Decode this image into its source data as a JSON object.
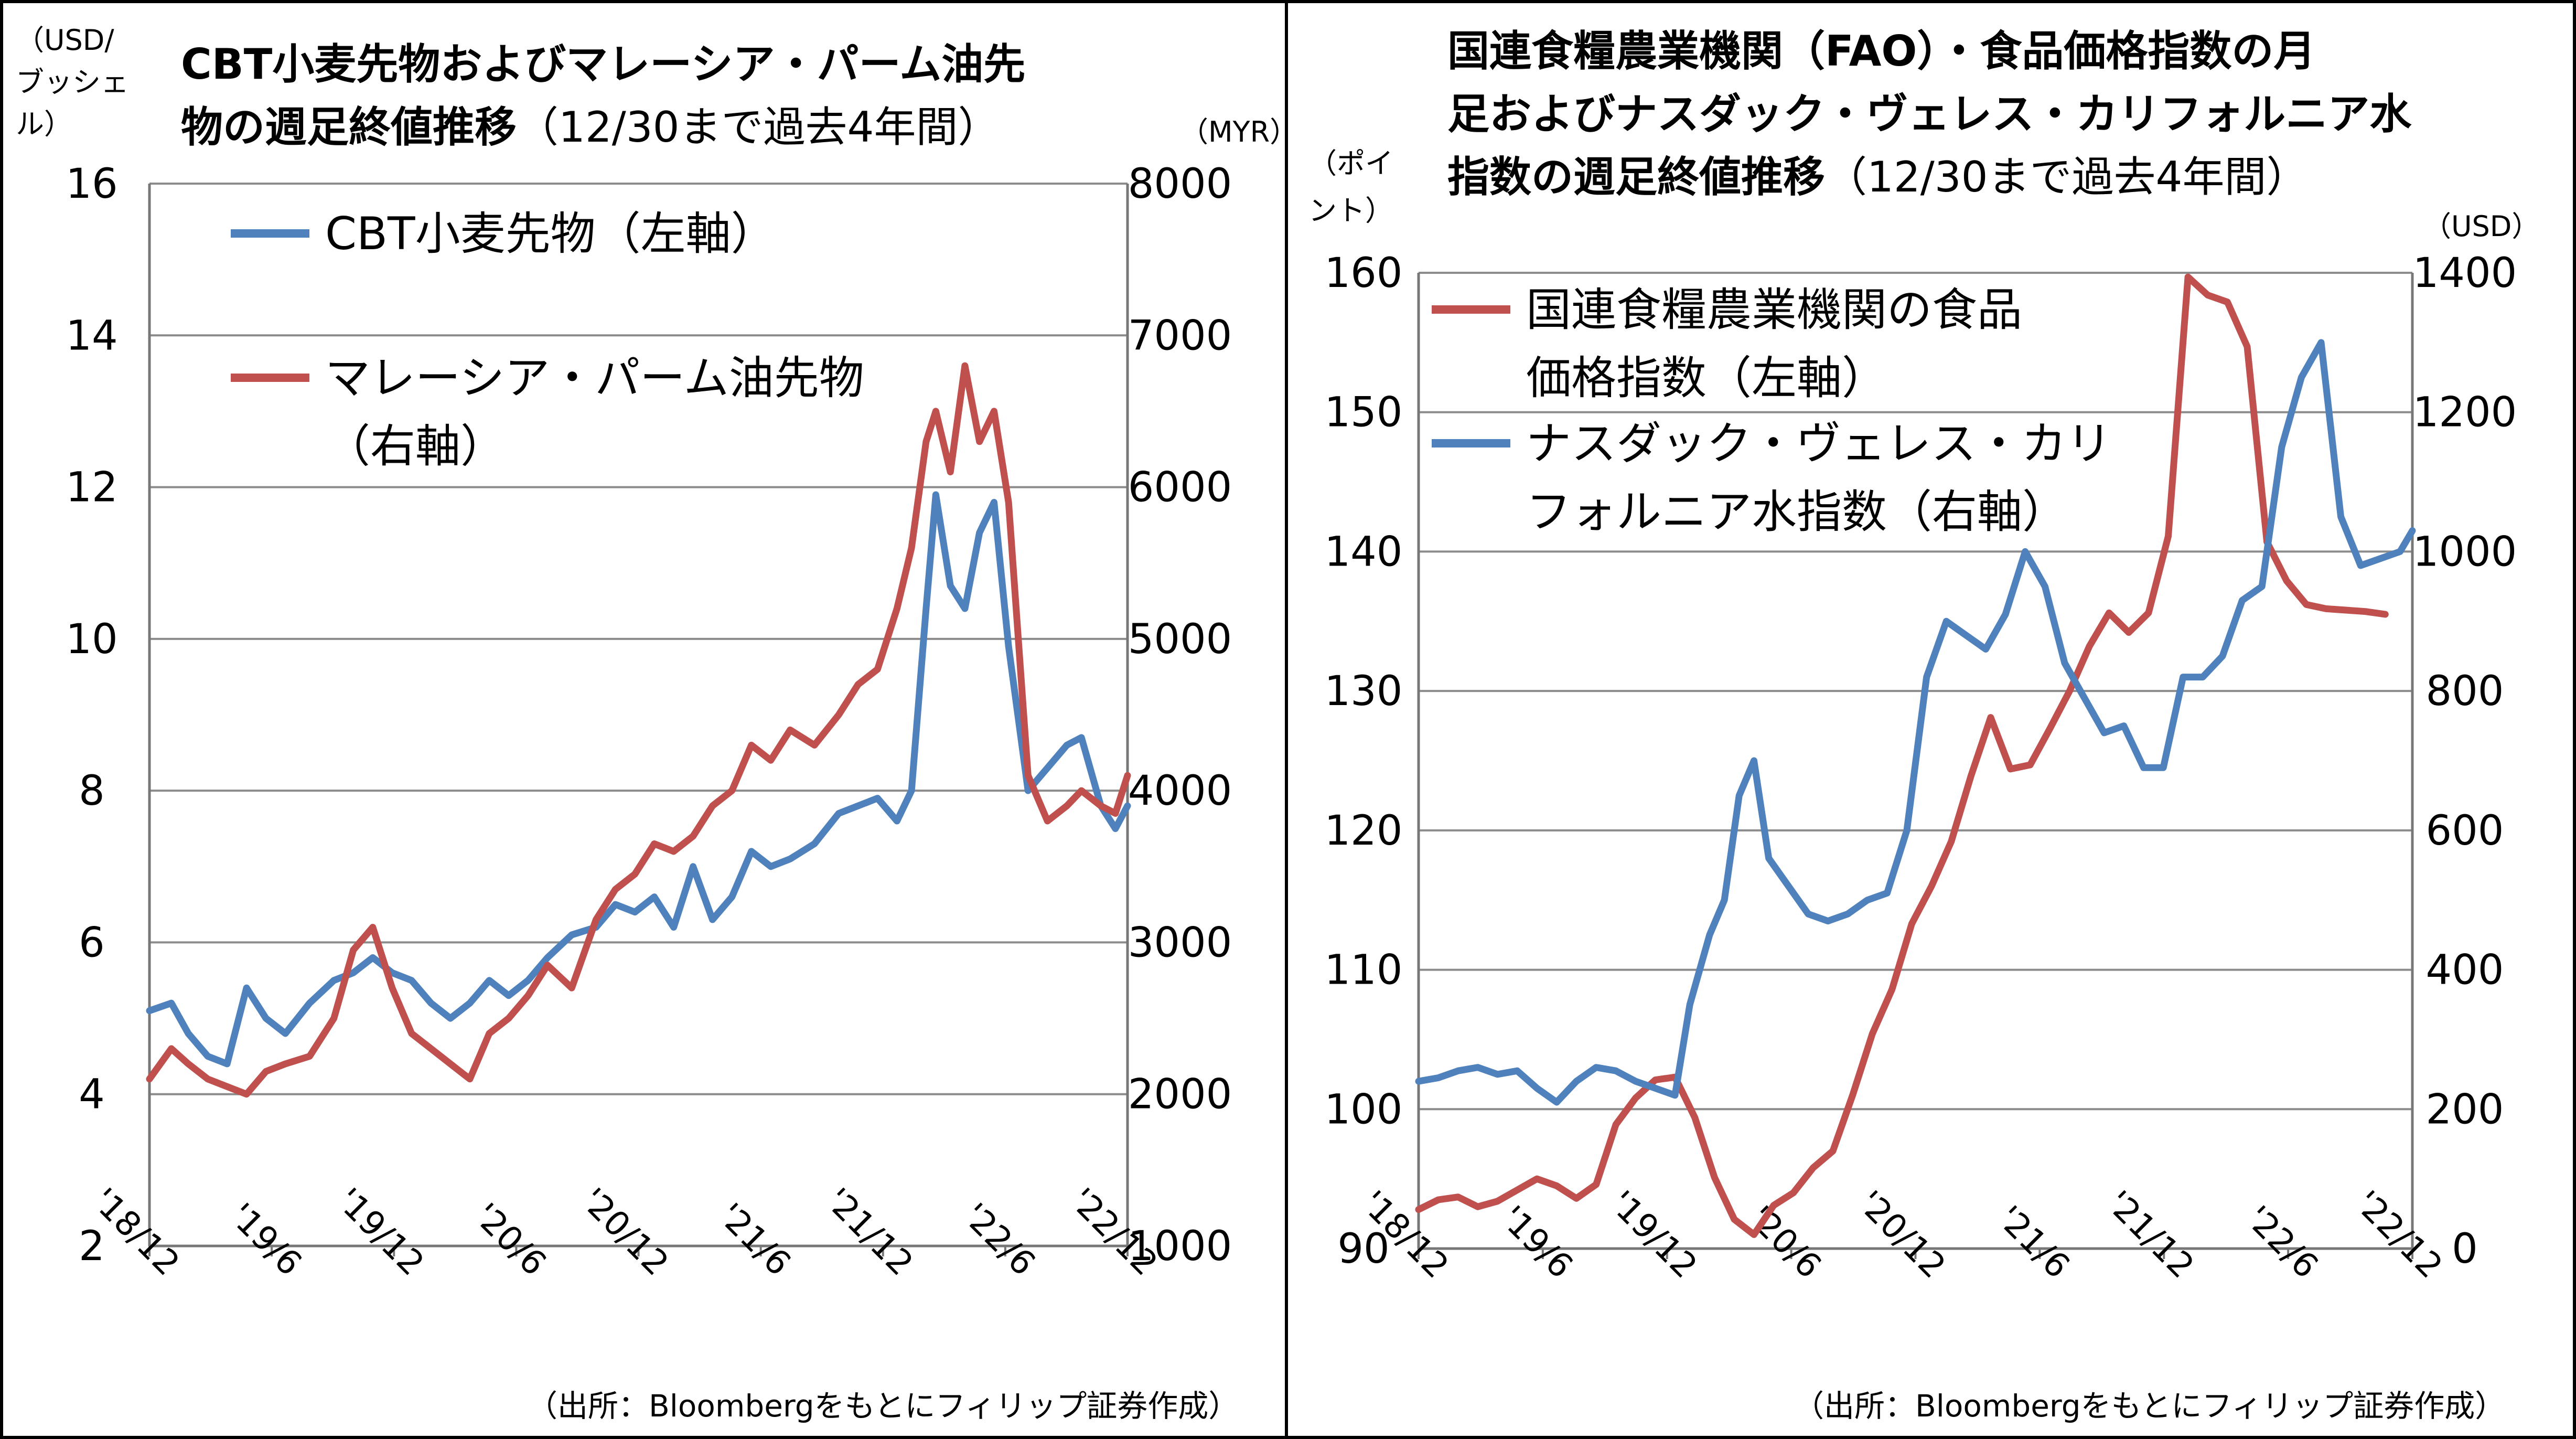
{
  "left_panel": {
    "title_bold_line1": "CBT小麦先物およびマレーシア・パーム油先",
    "title_bold_line2": "物の週足終値推移",
    "title_normal_line2": "（12/30まで過去4年間）",
    "right_unit": "（MYR）",
    "left_unit_line1": "（USD/",
    "left_unit_line2": "ブッシェ",
    "left_unit_line3": "ル）",
    "legend": [
      "CBT小麦先物（左軸）",
      "マレーシア・パーム油先物",
      "（右軸）"
    ],
    "source": "（出所：Bloombergをもとにフィリップ証券作成）"
  },
  "right_panel": {
    "title_line1": "国連食糧農業機関（FAO）・食品価格指数の月",
    "title_line2": "足およびナスダック・ヴェレス・カリフォルニア水",
    "title_bold_line3": "指数の週足終値推移",
    "title_normal_line3": "（12/30まで過去4年間）",
    "left_unit_line1": "（ポイ",
    "left_unit_line2": "ント）",
    "right_unit": "（USD）",
    "legend": [
      "国連食糧農業機関の食品",
      "価格指数（左軸）",
      "ナスダック・ヴェレス・カリ",
      "フォルニア水指数（右軸）"
    ],
    "source": "（出所：Bloombergをもとにフィリップ証券作成）"
  },
  "colors": {
    "blue": "#4F81BD",
    "red": "#C0504D",
    "grid": "#8C8C8C"
  },
  "chart_data": [
    {
      "type": "line",
      "x_labels": [
        "'18/12",
        "'19/6",
        "'19/12",
        "'20/6",
        "'20/12",
        "'21/6",
        "'21/12",
        "'22/6",
        "'22/12"
      ],
      "x_range": [
        2018.96,
        2022.99
      ],
      "y_left": {
        "ticks": [
          "2",
          "4",
          "6",
          "8",
          "10",
          "12",
          "14",
          "16"
        ],
        "range": [
          2,
          16
        ]
      },
      "y_right": {
        "ticks": [
          "1000",
          "2000",
          "3000",
          "4000",
          "5000",
          "6000",
          "7000",
          "8000"
        ],
        "range": [
          1000,
          8000
        ]
      },
      "grid": "horizontal",
      "series": [
        {
          "name": "CBT小麦先物（左軸）",
          "axis": "left",
          "color": "#4F81BD",
          "x": [
            2018.96,
            2019.05,
            2019.12,
            2019.2,
            2019.28,
            2019.36,
            2019.44,
            2019.52,
            2019.62,
            2019.72,
            2019.8,
            2019.88,
            2019.96,
            2020.04,
            2020.12,
            2020.2,
            2020.28,
            2020.36,
            2020.44,
            2020.52,
            2020.6,
            2020.7,
            2020.8,
            2020.88,
            2020.96,
            2021.04,
            2021.12,
            2021.2,
            2021.28,
            2021.36,
            2021.44,
            2021.52,
            2021.6,
            2021.7,
            2021.8,
            2021.88,
            2021.96,
            2022.04,
            2022.1,
            2022.16,
            2022.2,
            2022.26,
            2022.32,
            2022.38,
            2022.44,
            2022.5,
            2022.58,
            2022.66,
            2022.74,
            2022.8,
            2022.88,
            2022.94,
            2022.99
          ],
          "values": [
            5.1,
            5.2,
            4.8,
            4.5,
            4.4,
            5.4,
            5.0,
            4.8,
            5.2,
            5.5,
            5.6,
            5.8,
            5.6,
            5.5,
            5.2,
            5.0,
            5.2,
            5.5,
            5.3,
            5.5,
            5.8,
            6.1,
            6.2,
            6.5,
            6.4,
            6.6,
            6.2,
            7.0,
            6.3,
            6.6,
            7.2,
            7.0,
            7.1,
            7.3,
            7.7,
            7.8,
            7.9,
            7.6,
            8.0,
            10.4,
            11.9,
            10.7,
            10.4,
            11.4,
            11.8,
            9.9,
            8.0,
            8.3,
            8.6,
            8.7,
            7.8,
            7.5,
            7.8
          ]
        },
        {
          "name": "マレーシア・パーム油先物（右軸）",
          "axis": "right",
          "color": "#C0504D",
          "x": [
            2018.96,
            2019.05,
            2019.12,
            2019.2,
            2019.28,
            2019.36,
            2019.44,
            2019.52,
            2019.62,
            2019.72,
            2019.8,
            2019.88,
            2019.96,
            2020.04,
            2020.12,
            2020.2,
            2020.28,
            2020.36,
            2020.44,
            2020.52,
            2020.6,
            2020.7,
            2020.8,
            2020.88,
            2020.96,
            2021.04,
            2021.12,
            2021.2,
            2021.28,
            2021.36,
            2021.44,
            2021.52,
            2021.6,
            2021.7,
            2021.8,
            2021.88,
            2021.96,
            2022.04,
            2022.1,
            2022.16,
            2022.2,
            2022.26,
            2022.32,
            2022.38,
            2022.44,
            2022.5,
            2022.58,
            2022.66,
            2022.74,
            2022.8,
            2022.88,
            2022.94,
            2022.99
          ],
          "values": [
            2100,
            2300,
            2200,
            2100,
            2050,
            2000,
            2150,
            2200,
            2250,
            2500,
            2950,
            3100,
            2700,
            2400,
            2300,
            2200,
            2100,
            2400,
            2500,
            2650,
            2850,
            2700,
            3150,
            3350,
            3450,
            3650,
            3600,
            3700,
            3900,
            4000,
            4300,
            4200,
            4400,
            4300,
            4500,
            4700,
            4800,
            5200,
            5600,
            6300,
            6500,
            6100,
            6800,
            6300,
            6500,
            5900,
            4100,
            3800,
            3900,
            4000,
            3900,
            3850,
            4100
          ]
        }
      ]
    },
    {
      "type": "line",
      "x_labels": [
        "'18/12",
        "'19/6",
        "'19/12",
        "'20/6",
        "'20/12",
        "'21/6",
        "'21/12",
        "'22/6",
        "'22/12"
      ],
      "x_range": [
        2018.96,
        2022.99
      ],
      "y_left": {
        "ticks": [
          "90",
          "100",
          "110",
          "120",
          "130",
          "140",
          "150",
          "160"
        ],
        "range": [
          90,
          160
        ]
      },
      "y_right": {
        "ticks": [
          "0",
          "200",
          "400",
          "600",
          "800",
          "1000",
          "1200",
          "1400"
        ],
        "range": [
          0,
          1400
        ]
      },
      "grid": "horizontal",
      "series": [
        {
          "name": "国連食糧農業機関の食品価格指数（左軸）",
          "axis": "left",
          "color": "#C0504D",
          "x": [
            2018.96,
            2019.04,
            2019.12,
            2019.2,
            2019.28,
            2019.36,
            2019.44,
            2019.52,
            2019.6,
            2019.68,
            2019.76,
            2019.84,
            2019.92,
            2020.0,
            2020.08,
            2020.16,
            2020.24,
            2020.32,
            2020.4,
            2020.48,
            2020.56,
            2020.64,
            2020.72,
            2020.8,
            2020.88,
            2020.96,
            2021.04,
            2021.12,
            2021.2,
            2021.28,
            2021.36,
            2021.44,
            2021.52,
            2021.6,
            2021.68,
            2021.76,
            2021.84,
            2021.92,
            2022.0,
            2022.08,
            2022.16,
            2022.24,
            2022.32,
            2022.4,
            2022.48,
            2022.56,
            2022.64,
            2022.72,
            2022.8,
            2022.88
          ],
          "values": [
            92.8,
            93.5,
            93.7,
            93.0,
            93.4,
            94.2,
            95.0,
            94.5,
            93.6,
            94.6,
            98.9,
            100.8,
            102.1,
            102.3,
            99.4,
            95.1,
            92.1,
            91.0,
            93.1,
            94.0,
            95.8,
            97.0,
            101.0,
            105.4,
            108.6,
            113.3,
            116.0,
            119.2,
            123.9,
            128.1,
            124.4,
            124.7,
            127.3,
            130.0,
            133.2,
            135.6,
            134.2,
            135.6,
            141.1,
            159.7,
            158.4,
            157.9,
            154.7,
            140.7,
            137.9,
            136.2,
            135.9,
            135.8,
            135.7,
            135.5
          ]
        },
        {
          "name": "ナスダック・ヴェレス・カリフォルニア水指数（右軸）",
          "axis": "right",
          "color": "#4F81BD",
          "x": [
            2018.96,
            2019.04,
            2019.12,
            2019.2,
            2019.28,
            2019.36,
            2019.44,
            2019.52,
            2019.6,
            2019.68,
            2019.76,
            2019.84,
            2019.92,
            2020.0,
            2020.06,
            2020.14,
            2020.2,
            2020.26,
            2020.32,
            2020.38,
            2020.46,
            2020.54,
            2020.62,
            2020.7,
            2020.78,
            2020.86,
            2020.94,
            2021.02,
            2021.1,
            2021.18,
            2021.26,
            2021.34,
            2021.42,
            2021.5,
            2021.58,
            2021.66,
            2021.74,
            2021.82,
            2021.9,
            2021.98,
            2022.06,
            2022.14,
            2022.22,
            2022.3,
            2022.38,
            2022.46,
            2022.54,
            2022.62,
            2022.7,
            2022.78,
            2022.86,
            2022.94,
            2022.99
          ],
          "values": [
            240,
            245,
            255,
            260,
            250,
            255,
            230,
            210,
            240,
            260,
            255,
            240,
            230,
            220,
            350,
            450,
            500,
            650,
            700,
            560,
            520,
            480,
            470,
            480,
            500,
            510,
            600,
            820,
            900,
            880,
            860,
            910,
            1000,
            950,
            840,
            790,
            740,
            750,
            690,
            690,
            820,
            820,
            850,
            930,
            950,
            1150,
            1250,
            1300,
            1050,
            980,
            990,
            1000,
            1030
          ]
        }
      ]
    }
  ]
}
